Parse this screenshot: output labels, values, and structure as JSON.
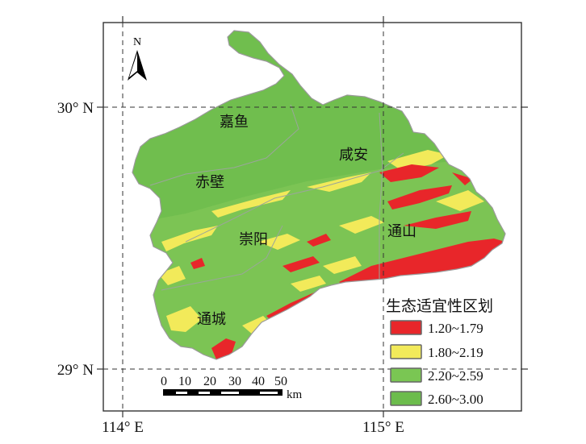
{
  "map": {
    "north_label": "N",
    "lat_labels": [
      "30° N",
      "29° N"
    ],
    "lon_labels": [
      "114° E",
      "115° E"
    ],
    "places": [
      "嘉鱼",
      "赤壁",
      "咸安",
      "崇阳",
      "通山",
      "通城"
    ],
    "scalebar": {
      "ticks": [
        "0",
        "10",
        "20",
        "30",
        "40",
        "50"
      ],
      "unit": "km"
    },
    "legend": {
      "title": "生态适宜性区划",
      "items": [
        {
          "label": "1.20~1.79",
          "color": "#e8262a"
        },
        {
          "label": "1.80~2.19",
          "color": "#f2ea5a"
        },
        {
          "label": "2.20~2.59",
          "color": "#7ac653"
        },
        {
          "label": "2.60~3.00",
          "color": "#6cbc4c"
        }
      ]
    }
  }
}
